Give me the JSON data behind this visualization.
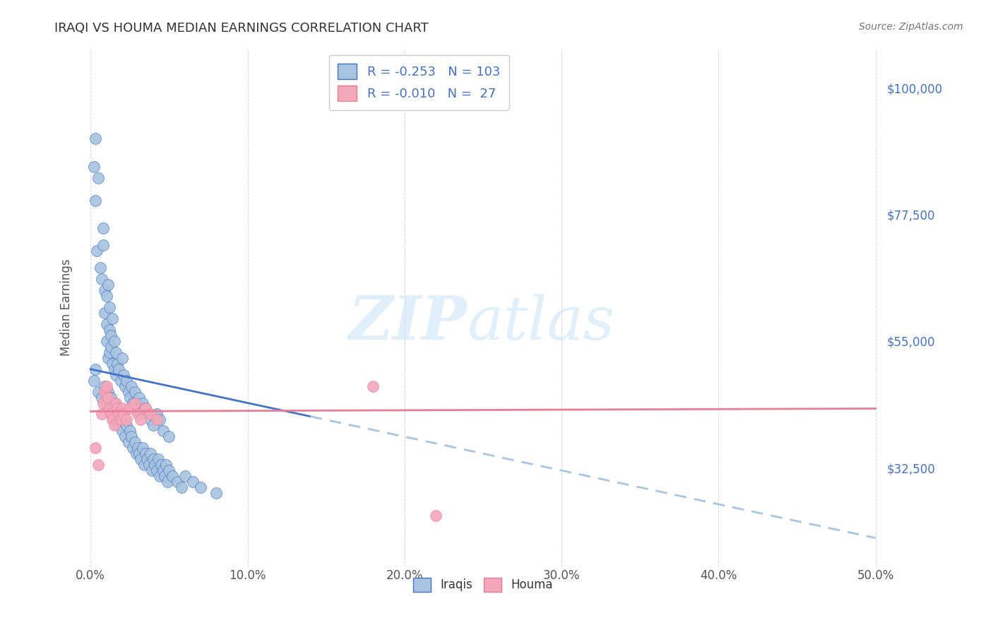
{
  "title": "IRAQI VS HOUMA MEDIAN EARNINGS CORRELATION CHART",
  "source": "Source: ZipAtlas.com",
  "ylabel": "Median Earnings",
  "xlabel_ticks": [
    "0.0%",
    "10.0%",
    "20.0%",
    "30.0%",
    "40.0%",
    "50.0%"
  ],
  "xlabel_vals": [
    0.0,
    0.1,
    0.2,
    0.3,
    0.4,
    0.5
  ],
  "ytick_labels": [
    "$32,500",
    "$55,000",
    "$77,500",
    "$100,000"
  ],
  "ytick_vals": [
    32500,
    55000,
    77500,
    100000
  ],
  "ylim": [
    15000,
    107000
  ],
  "xlim": [
    -0.005,
    0.505
  ],
  "iraqi_R": "-0.253",
  "iraqi_N": "103",
  "houma_R": "-0.010",
  "houma_N": "27",
  "iraqi_color": "#a8c4e0",
  "houma_color": "#f4a7b9",
  "iraqi_line_color": "#4472c4",
  "houma_line_color": "#e87d9a",
  "trend_dash_color": "#a8c4e0",
  "background_color": "#ffffff",
  "legend_fontsize": 13,
  "title_fontsize": 13,
  "iraqi_x": [
    0.003,
    0.002,
    0.005,
    0.003,
    0.004,
    0.006,
    0.007,
    0.008,
    0.008,
    0.009,
    0.009,
    0.01,
    0.01,
    0.01,
    0.011,
    0.011,
    0.012,
    0.012,
    0.012,
    0.013,
    0.013,
    0.014,
    0.014,
    0.015,
    0.015,
    0.016,
    0.016,
    0.017,
    0.018,
    0.019,
    0.002,
    0.003,
    0.005,
    0.007,
    0.009,
    0.01,
    0.011,
    0.012,
    0.013,
    0.014,
    0.015,
    0.016,
    0.017,
    0.018,
    0.019,
    0.02,
    0.021,
    0.022,
    0.023,
    0.024,
    0.025,
    0.026,
    0.027,
    0.028,
    0.029,
    0.03,
    0.031,
    0.032,
    0.033,
    0.034,
    0.02,
    0.021,
    0.022,
    0.023,
    0.024,
    0.025,
    0.026,
    0.027,
    0.028,
    0.03,
    0.031,
    0.032,
    0.033,
    0.035,
    0.038,
    0.04,
    0.042,
    0.044,
    0.046,
    0.05,
    0.035,
    0.036,
    0.037,
    0.038,
    0.039,
    0.04,
    0.041,
    0.042,
    0.043,
    0.044,
    0.045,
    0.046,
    0.047,
    0.048,
    0.049,
    0.05,
    0.052,
    0.055,
    0.058,
    0.06,
    0.065,
    0.07,
    0.08
  ],
  "iraqi_y": [
    91000,
    86000,
    84000,
    80000,
    71000,
    68000,
    66000,
    72000,
    75000,
    64000,
    60000,
    55000,
    63000,
    58000,
    65000,
    52000,
    57000,
    61000,
    53000,
    56000,
    54000,
    59000,
    51000,
    55000,
    50000,
    53000,
    49000,
    51000,
    50000,
    48000,
    48000,
    50000,
    46000,
    45000,
    47000,
    44000,
    46000,
    43000,
    45000,
    42000,
    44000,
    41000,
    43000,
    40000,
    42000,
    39000,
    41000,
    38000,
    40000,
    37000,
    39000,
    38000,
    36000,
    37000,
    35000,
    36000,
    35000,
    34000,
    36000,
    33000,
    52000,
    49000,
    47000,
    48000,
    46000,
    45000,
    47000,
    44000,
    46000,
    43000,
    45000,
    42000,
    44000,
    43000,
    41000,
    40000,
    42000,
    41000,
    39000,
    38000,
    35000,
    34000,
    33000,
    35000,
    32000,
    34000,
    33000,
    32000,
    34000,
    31000,
    33000,
    32000,
    31000,
    33000,
    30000,
    32000,
    31000,
    30000,
    29000,
    31000,
    30000,
    29000,
    28000
  ],
  "houma_x": [
    0.003,
    0.005,
    0.007,
    0.008,
    0.009,
    0.01,
    0.011,
    0.012,
    0.013,
    0.014,
    0.015,
    0.016,
    0.017,
    0.018,
    0.019,
    0.02,
    0.021,
    0.023,
    0.025,
    0.028,
    0.03,
    0.032,
    0.035,
    0.038,
    0.042,
    0.18,
    0.22
  ],
  "houma_y": [
    36000,
    33000,
    42000,
    44000,
    46000,
    47000,
    45000,
    43000,
    42000,
    41000,
    40000,
    44000,
    43000,
    42000,
    41000,
    43000,
    42000,
    41000,
    43000,
    44000,
    42000,
    41000,
    43000,
    42000,
    41000,
    47000,
    24000
  ]
}
